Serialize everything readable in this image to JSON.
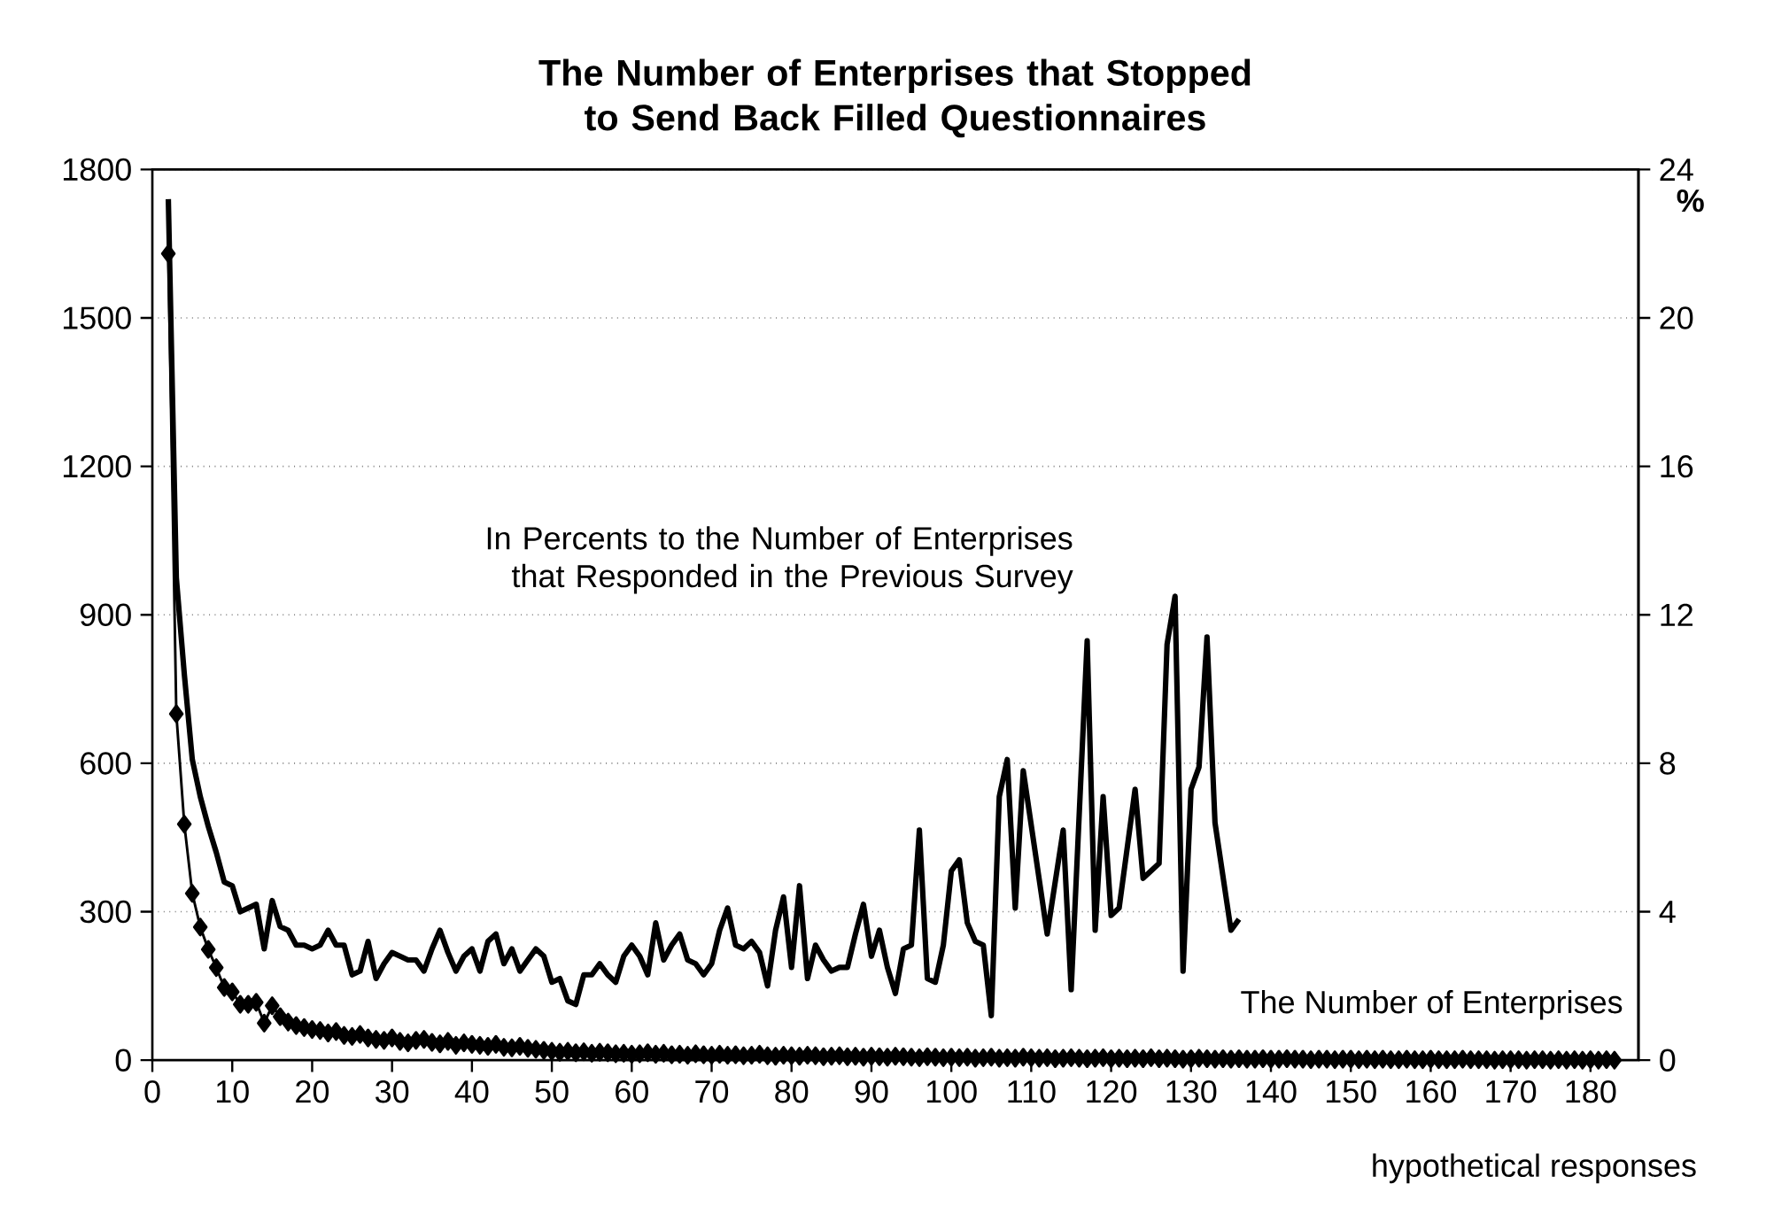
{
  "chart_data": {
    "type": "line",
    "title": "The Number of Enterprises that Stopped to Send Back Filled Questionnaires",
    "xlabel": "hypothetical responses",
    "y2label": "%",
    "xlim": [
      0,
      186
    ],
    "xticks": [
      0,
      10,
      20,
      30,
      40,
      50,
      60,
      70,
      80,
      90,
      100,
      110,
      120,
      130,
      140,
      150,
      160,
      170,
      180
    ],
    "ylim": [
      0,
      1800
    ],
    "yticks": [
      0,
      300,
      600,
      900,
      1200,
      1500,
      1800
    ],
    "y2lim": [
      0,
      24
    ],
    "y2ticks": [
      0,
      4,
      8,
      12,
      16,
      20,
      24
    ],
    "grid": "y",
    "series": [
      {
        "name": "In Percents to the Number of Enterprises that Responded in the Previous Survey",
        "color": "#000000",
        "axis": "y2",
        "marker": "none",
        "x": [
          2,
          3,
          4,
          5,
          6,
          7,
          8,
          9,
          10,
          11,
          12,
          13,
          14,
          15,
          16,
          17,
          18,
          19,
          20,
          21,
          22,
          23,
          24,
          25,
          26,
          27,
          28,
          29,
          30,
          31,
          32,
          33,
          34,
          35,
          36,
          37,
          38,
          39,
          40,
          41,
          42,
          43,
          44,
          45,
          46,
          47,
          48,
          49,
          50,
          51,
          52,
          53,
          54,
          55,
          56,
          57,
          58,
          59,
          60,
          61,
          62,
          63,
          64,
          65,
          66,
          67,
          68,
          69,
          70,
          71,
          72,
          73,
          74,
          75,
          76,
          77,
          78,
          79,
          80,
          81,
          82,
          83,
          84,
          85,
          86,
          87,
          88,
          89,
          90,
          91,
          92,
          93,
          94,
          95,
          96,
          97,
          98,
          99,
          100,
          101,
          102,
          103,
          104,
          105,
          106,
          107,
          108,
          109,
          112,
          114,
          115,
          117,
          118,
          119,
          120,
          121,
          123,
          124,
          126,
          127,
          128,
          129,
          130,
          131,
          132,
          133,
          135,
          136
        ],
        "values": [
          23.2,
          13.0,
          10.4,
          8.1,
          7.1,
          6.3,
          5.6,
          4.8,
          4.7,
          4.0,
          4.1,
          4.2,
          3.0,
          4.3,
          3.6,
          3.5,
          3.1,
          3.1,
          3.0,
          3.1,
          3.5,
          3.1,
          3.1,
          2.3,
          2.4,
          3.2,
          2.2,
          2.6,
          2.9,
          2.8,
          2.7,
          2.7,
          2.4,
          3.0,
          3.5,
          2.9,
          2.4,
          2.8,
          3.0,
          2.4,
          3.2,
          3.4,
          2.6,
          3.0,
          2.4,
          2.7,
          3.0,
          2.8,
          2.1,
          2.2,
          1.6,
          1.5,
          2.3,
          2.3,
          2.6,
          2.3,
          2.1,
          2.8,
          3.1,
          2.8,
          2.3,
          3.7,
          2.7,
          3.1,
          3.4,
          2.7,
          2.6,
          2.3,
          2.6,
          3.5,
          4.1,
          3.1,
          3.0,
          3.2,
          2.9,
          2.0,
          3.5,
          4.4,
          2.5,
          4.7,
          2.2,
          3.1,
          2.7,
          2.4,
          2.5,
          2.5,
          3.4,
          4.2,
          2.8,
          3.5,
          2.5,
          1.8,
          3.0,
          3.1,
          6.2,
          2.2,
          2.1,
          3.1,
          5.1,
          5.4,
          3.7,
          3.2,
          3.1,
          1.2,
          7.1,
          8.1,
          4.1,
          7.8,
          3.4,
          6.2,
          1.9,
          11.3,
          3.5,
          7.1,
          3.9,
          4.1,
          7.3,
          4.9,
          5.3,
          11.2,
          12.5,
          2.4,
          7.3,
          7.9,
          11.4,
          6.4,
          3.5,
          3.8
        ]
      },
      {
        "name": "The Number of Enterprises",
        "color": "#000000",
        "axis": "y",
        "marker": "diamond",
        "x": [
          2,
          3,
          4,
          5,
          6,
          7,
          8,
          9,
          10,
          11,
          12,
          13,
          14,
          15,
          16,
          17,
          18,
          19,
          20,
          21,
          22,
          23,
          24,
          25,
          26,
          27,
          28,
          29,
          30,
          31,
          32,
          33,
          34,
          35,
          36,
          37,
          38,
          39,
          40,
          41,
          42,
          43,
          44,
          45,
          46,
          47,
          48,
          49,
          50,
          51,
          52,
          53,
          54,
          55,
          56,
          57,
          58,
          59,
          60,
          61,
          62,
          63,
          64,
          65,
          66,
          67,
          68,
          69,
          70,
          71,
          72,
          73,
          74,
          75,
          76,
          77,
          78,
          79,
          80,
          81,
          82,
          83,
          84,
          85,
          86,
          87,
          88,
          89,
          90,
          91,
          92,
          93,
          94,
          95,
          96,
          97,
          98,
          99,
          100,
          101,
          102,
          103,
          104,
          105,
          106,
          107,
          108,
          109,
          110,
          111,
          112,
          113,
          114,
          115,
          116,
          117,
          118,
          119,
          120,
          121,
          122,
          123,
          124,
          125,
          126,
          127,
          128,
          129,
          130,
          131,
          132,
          133,
          134,
          135,
          136,
          137,
          138,
          139,
          140,
          141,
          142,
          143,
          144,
          145,
          146,
          147,
          148,
          149,
          150,
          151,
          152,
          153,
          154,
          155,
          156,
          157,
          158,
          159,
          160,
          161,
          162,
          163,
          164,
          165,
          166,
          167,
          168,
          169,
          170,
          171,
          172,
          173,
          174,
          175,
          176,
          177,
          178,
          179,
          180,
          181,
          182,
          183
        ],
        "values": [
          1630,
          700,
          477,
          337,
          269,
          224,
          187,
          147,
          138,
          113,
          113,
          117,
          75,
          110,
          88,
          77,
          70,
          66,
          62,
          60,
          55,
          58,
          50,
          48,
          52,
          45,
          42,
          40,
          45,
          38,
          35,
          40,
          42,
          36,
          33,
          38,
          30,
          35,
          32,
          30,
          28,
          32,
          26,
          25,
          28,
          24,
          22,
          20,
          18,
          16,
          18,
          15,
          17,
          14,
          16,
          15,
          13,
          14,
          12,
          13,
          15,
          12,
          14,
          11,
          12,
          10,
          13,
          11,
          10,
          12,
          10,
          11,
          9,
          10,
          12,
          9,
          8,
          10,
          9,
          8,
          10,
          9,
          7,
          8,
          9,
          7,
          8,
          6,
          8,
          7,
          6,
          8,
          7,
          6,
          5,
          7,
          6,
          5,
          6,
          5,
          6,
          4,
          5,
          6,
          4,
          5,
          4,
          6,
          5,
          4,
          5,
          3,
          4,
          5,
          4,
          3,
          4,
          5,
          3,
          4,
          3,
          4,
          3,
          5,
          3,
          4,
          3,
          2,
          3,
          4,
          3,
          2,
          3,
          2,
          3,
          2,
          2,
          3,
          2,
          2,
          3,
          2,
          2,
          1,
          2,
          2,
          1,
          2,
          2,
          1,
          2,
          1,
          2,
          1,
          1,
          2,
          1,
          1,
          2,
          1,
          1,
          1,
          2,
          1,
          1,
          1,
          0,
          1,
          1,
          1,
          0,
          1,
          1,
          0,
          1,
          0,
          1,
          0,
          1,
          0,
          1,
          0
        ]
      }
    ]
  }
}
